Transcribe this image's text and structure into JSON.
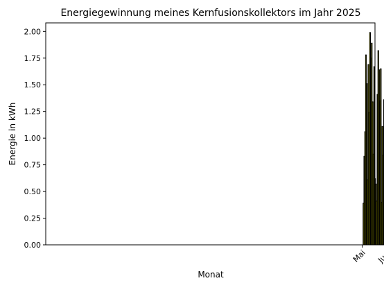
{
  "chart_data": {
    "type": "bar",
    "title": "Energiegewinnung meines Kernfusionskollektors im Jahr 2025",
    "xlabel": "Monat",
    "ylabel": "Energie in kWh",
    "x_ticks": [
      {
        "label": "Mai",
        "date": "2025-05-01"
      },
      {
        "label": "Juni",
        "date": "2025-06-01"
      }
    ],
    "x_range": [
      "2024-04-30",
      "2025-06-04"
    ],
    "ylim": [
      0,
      2.08
    ],
    "y_ticks": [
      "0.00",
      "0.25",
      "0.50",
      "0.75",
      "1.00",
      "1.25",
      "1.50",
      "1.75",
      "2.00"
    ],
    "grid": false,
    "bar_color": "#ffff00",
    "edge_color": "#000000",
    "dates": [
      "2025-05-01",
      "2025-05-02",
      "2025-05-03",
      "2025-05-04",
      "2025-05-05",
      "2025-05-06",
      "2025-05-07",
      "2025-05-08",
      "2025-05-09",
      "2025-05-10",
      "2025-05-11",
      "2025-05-12",
      "2025-05-13",
      "2025-05-14",
      "2025-05-15",
      "2025-05-16",
      "2025-05-17",
      "2025-05-18",
      "2025-05-19",
      "2025-05-20",
      "2025-05-21",
      "2025-05-22",
      "2025-05-23",
      "2025-05-24",
      "2025-05-25",
      "2025-05-26",
      "2025-05-27",
      "2025-05-28",
      "2025-05-29",
      "2025-05-30",
      "2025-05-31",
      "2025-06-01",
      "2025-06-02",
      "2025-06-03"
    ],
    "values": [
      0.0,
      0.39,
      0.83,
      1.06,
      1.78,
      1.51,
      0.61,
      1.69,
      1.24,
      1.99,
      1.75,
      1.89,
      1.34,
      0.85,
      1.67,
      0.62,
      0.57,
      0.41,
      1.41,
      1.82,
      1.64,
      1.35,
      1.65,
      0.4,
      1.11,
      0.84,
      1.36,
      1.25,
      1.4,
      1.66,
      1.03,
      1.36,
      1.61,
      0.0
    ]
  }
}
